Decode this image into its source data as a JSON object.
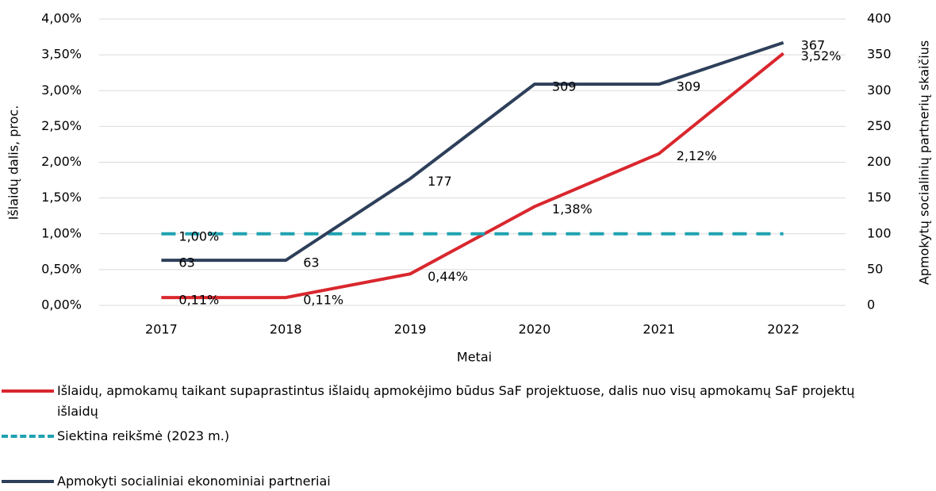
{
  "chart_data": {
    "type": "line",
    "categories": [
      "2017",
      "2018",
      "2019",
      "2020",
      "2021",
      "2022"
    ],
    "xlabel": "Metai",
    "ylabel": "Išlaidų dalis, proc.",
    "y2label": "Apmokytų socialinių partnerių skaičius",
    "ylim": [
      0,
      4
    ],
    "yticks": [
      {
        "value": 0,
        "label": "0,00%"
      },
      {
        "value": 0.5,
        "label": "0,50%"
      },
      {
        "value": 1,
        "label": "1,00%"
      },
      {
        "value": 1.5,
        "label": "1,50%"
      },
      {
        "value": 2,
        "label": "2,00%"
      },
      {
        "value": 2.5,
        "label": "2,50%"
      },
      {
        "value": 3,
        "label": "3,00%"
      },
      {
        "value": 3.5,
        "label": "3,50%"
      },
      {
        "value": 4,
        "label": "4,00%"
      }
    ],
    "y2lim": [
      0,
      400
    ],
    "y2ticks": [
      0,
      50,
      100,
      150,
      200,
      250,
      300,
      350,
      400
    ],
    "grid": true,
    "legend": "bottom",
    "series": [
      {
        "name": "Išlaidų, apmokamų taikant supaprastintus išlaidų apmokėjimo būdus SaF projektuose, dalis nuo visų apmokamų SaF projektų išlaidų",
        "color": "#d9272e",
        "dash": false,
        "values": [
          0.11,
          0.11,
          0.44,
          1.38,
          2.12,
          3.52
        ],
        "value_labels": [
          "0,11%",
          "0,11%",
          "0,44%",
          "1,38%",
          "2,12%",
          "3,52%"
        ]
      },
      {
        "name": "Siektina reikšmė (2023 m.)",
        "color": "#1fa2b0",
        "dash": true,
        "values": [
          1,
          1,
          1,
          1,
          1,
          1
        ],
        "value_labels": [
          "1,00%",
          null,
          null,
          null,
          null,
          null
        ]
      },
      {
        "name": "Apmokyti socialiniai ekonominiai partneriai",
        "color": "#2e3f5a",
        "dash": false,
        "axis": "y2",
        "values": [
          63,
          63,
          177,
          309,
          309,
          367
        ]
      }
    ]
  }
}
